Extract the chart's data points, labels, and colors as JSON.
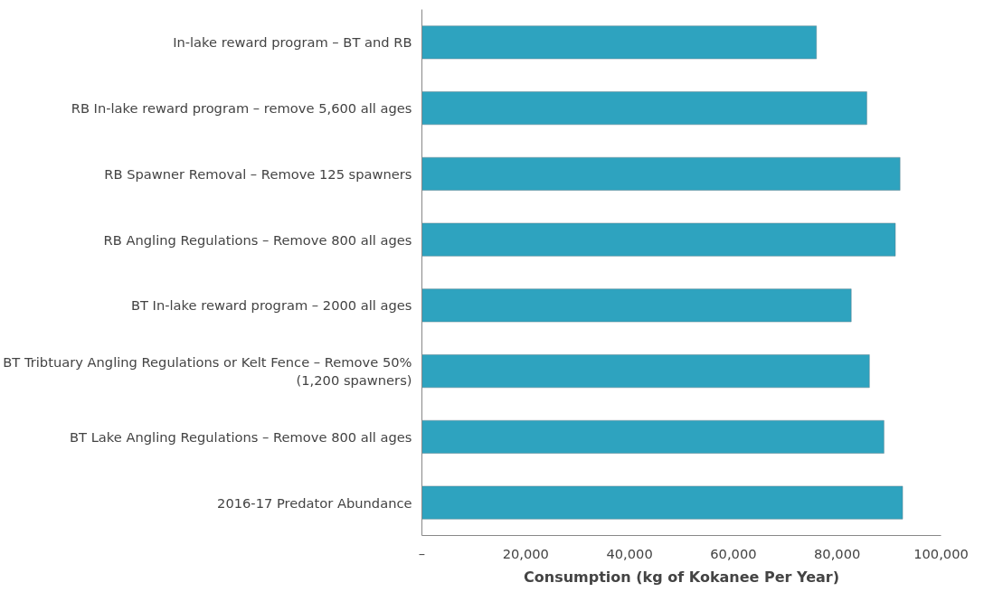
{
  "chart_data": {
    "type": "bar",
    "orientation": "horizontal",
    "xlabel": "Consumption (kg of Kokanee Per Year)",
    "categories": [
      "In-lake reward program – BT and RB",
      "RB In-lake reward program – remove 5,600 all ages",
      "RB Spawner Removal – Remove 125 spawners",
      "RB Angling Regulations – Remove 800 all ages",
      "BT In-lake reward program – 2000 all ages",
      "BT Tribtuary Angling Regulations or Kelt Fence – Remove 50% (1,200 spawners)",
      "BT Lake Angling Regulations – Remove 800 all ages",
      "2016-17 Predator Abundance"
    ],
    "values": [
      76000,
      85700,
      92100,
      91200,
      82700,
      86200,
      89000,
      92600
    ],
    "color": "#2ea3bf",
    "xlim": [
      0,
      100000
    ],
    "xticks": [
      {
        "value": 0,
        "label": "–"
      },
      {
        "value": 20000,
        "label": "20,000"
      },
      {
        "value": 40000,
        "label": "40,000"
      },
      {
        "value": 60000,
        "label": "60,000"
      },
      {
        "value": 80000,
        "label": "80,000"
      },
      {
        "value": 100000,
        "label": "100,000"
      }
    ],
    "grid": false
  }
}
